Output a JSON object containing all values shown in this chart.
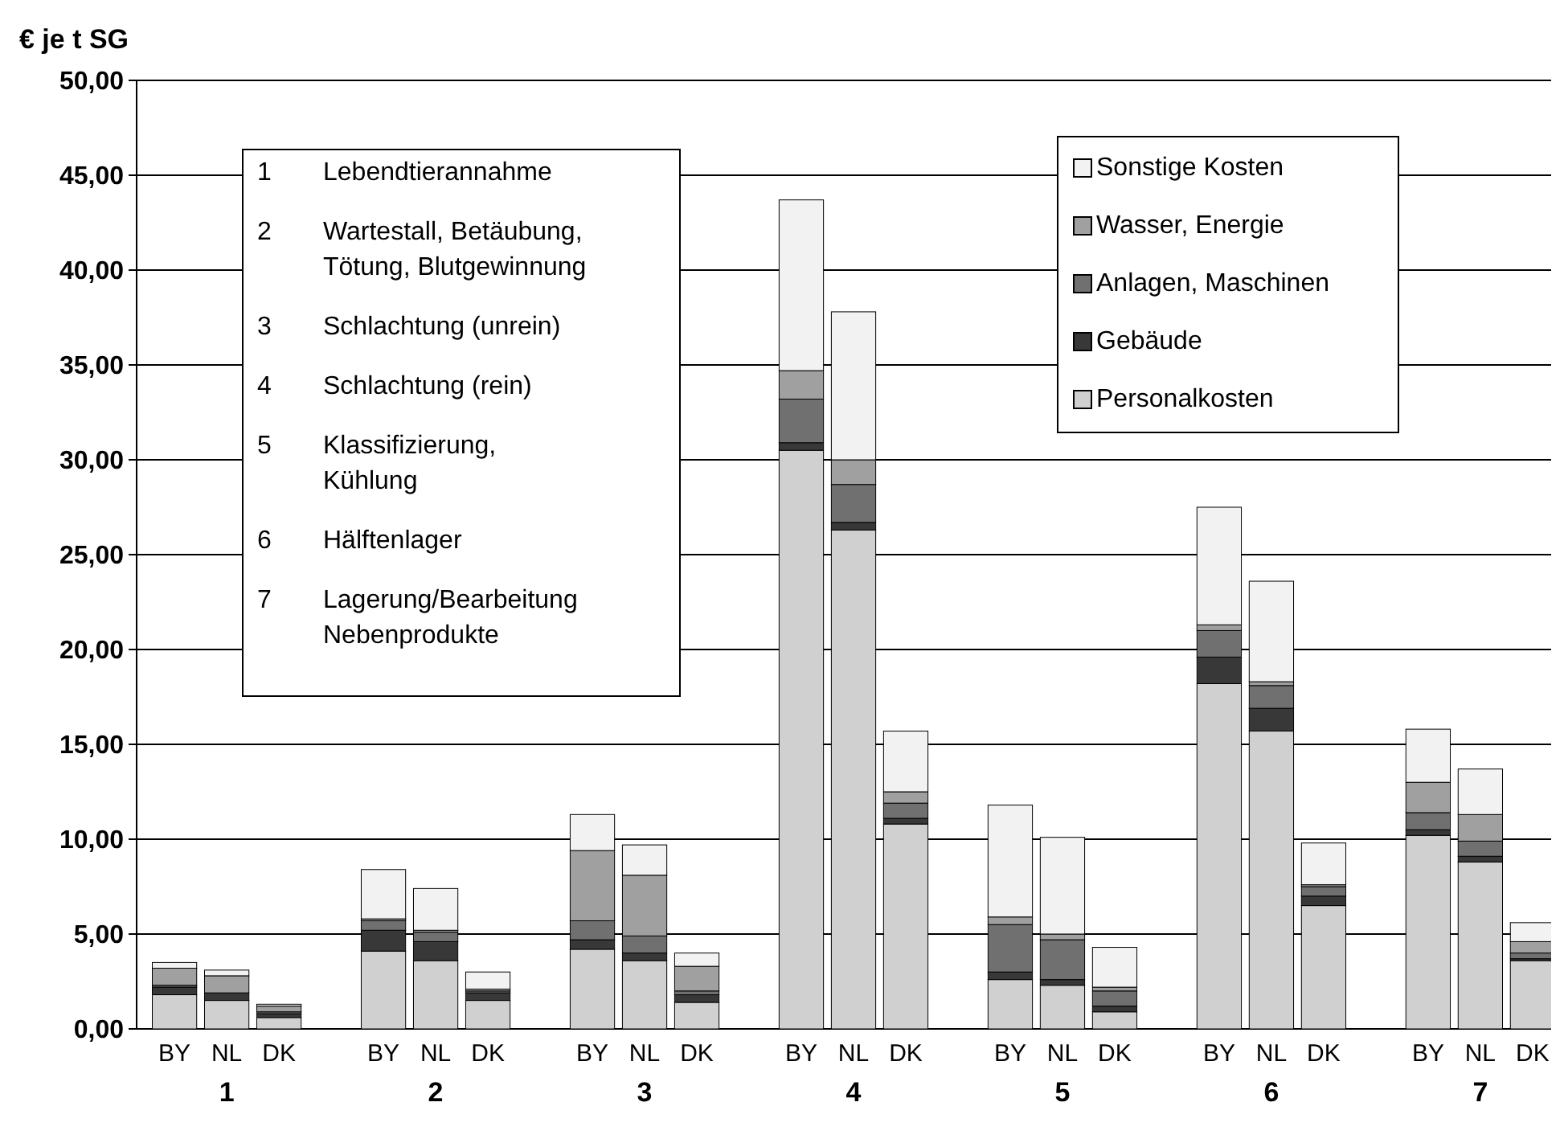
{
  "chart_data": {
    "type": "bar",
    "stacked": true,
    "ylabel": "€ je t SG",
    "categories": [
      "BY",
      "NL",
      "DK",
      null,
      "BY",
      "NL",
      "DK",
      null,
      "BY",
      "NL",
      "DK",
      null,
      "BY",
      "NL",
      "DK",
      null,
      "BY",
      "NL",
      "DK",
      null,
      "BY",
      "NL",
      "DK",
      null,
      "BY",
      "NL",
      "DK"
    ],
    "series": [
      {
        "name": "Personalkosten",
        "color": "#d0d0d0",
        "values": [
          1.8,
          1.5,
          0.6,
          null,
          4.1,
          3.6,
          1.5,
          null,
          4.2,
          3.6,
          1.4,
          null,
          30.5,
          26.3,
          10.8,
          null,
          2.6,
          2.3,
          0.9,
          null,
          18.2,
          15.7,
          6.5,
          null,
          10.2,
          8.8,
          3.6
        ]
      },
      {
        "name": "Gebäude",
        "color": "#383838",
        "values": [
          0.4,
          0.4,
          0.2,
          null,
          1.1,
          1.0,
          0.4,
          null,
          0.5,
          0.4,
          0.4,
          null,
          0.4,
          0.4,
          0.3,
          null,
          0.4,
          0.3,
          0.3,
          null,
          1.4,
          1.2,
          0.5,
          null,
          0.3,
          0.3,
          0.1
        ]
      },
      {
        "name": "Anlagen, Maschinen",
        "color": "#707070",
        "values": [
          0.1,
          0,
          0.1,
          null,
          0.5,
          0.5,
          0.1,
          null,
          1.0,
          0.9,
          0.2,
          null,
          2.3,
          2.0,
          0.8,
          null,
          2.5,
          2.1,
          0.8,
          null,
          1.4,
          1.2,
          0.5,
          null,
          0.9,
          0.8,
          0.3
        ]
      },
      {
        "name": "Wasser, Energie",
        "color": "#a0a0a0",
        "values": [
          0.9,
          0.9,
          0.3,
          null,
          0.1,
          0.1,
          0.1,
          null,
          3.7,
          3.2,
          1.3,
          null,
          1.5,
          1.3,
          0.6,
          null,
          0.4,
          0.3,
          0.2,
          null,
          0.3,
          0.2,
          0.1,
          null,
          1.6,
          1.4,
          0.6
        ]
      },
      {
        "name": "Sonstige Kosten",
        "color": "#f2f2f2",
        "values": [
          0.3,
          0.3,
          0.1,
          null,
          2.6,
          2.2,
          0.9,
          null,
          1.9,
          1.6,
          0.7,
          null,
          9.0,
          7.8,
          3.2,
          null,
          5.9,
          5.1,
          2.1,
          null,
          6.2,
          5.3,
          2.2,
          null,
          2.8,
          2.4,
          1.0
        ]
      }
    ],
    "ylim": [
      0,
      50
    ],
    "yticks": [
      {
        "value": 0,
        "label": "0,00"
      },
      {
        "value": 5,
        "label": "5,00"
      },
      {
        "value": 10,
        "label": "10,00"
      },
      {
        "value": 15,
        "label": "15,00"
      },
      {
        "value": 20,
        "label": "20,00"
      },
      {
        "value": 25,
        "label": "25,00"
      },
      {
        "value": 30,
        "label": "30,00"
      },
      {
        "value": 35,
        "label": "35,00"
      },
      {
        "value": 40,
        "label": "40,00"
      },
      {
        "value": 45,
        "label": "45,00"
      },
      {
        "value": 50,
        "label": "50,00"
      }
    ],
    "grid": "y",
    "legend": "top right",
    "annotations": [
      "1",
      "2",
      "3",
      "4",
      "5",
      "6",
      "7",
      "1 Lebendtierannahme",
      "2 Wartestall, Betäubung,\nTötung, Blutgewinnung",
      "3 Schlachtung (unrein)",
      "4 Schlachtung (rein)",
      "5 Klassifizierung,\nKühlung",
      "6 Hälftenlager",
      "7 Lagerung/Bearbeitung\nNebenprodukte"
    ]
  }
}
